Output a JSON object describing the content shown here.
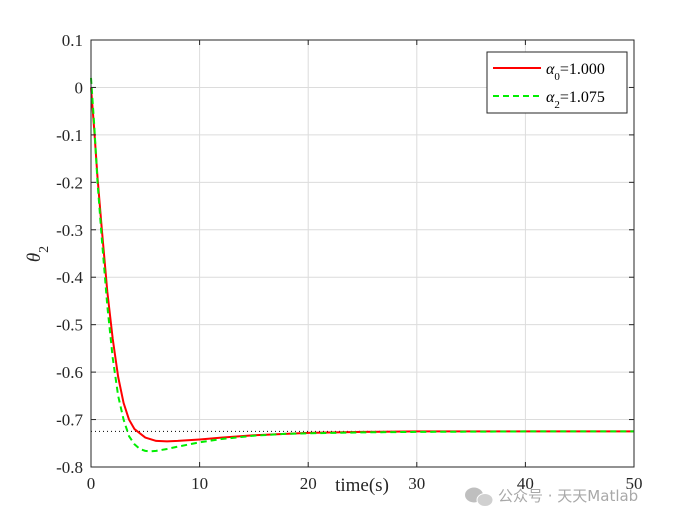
{
  "chart_data": {
    "type": "line",
    "xlabel": "time(s)",
    "ylabel_symbol": "θ",
    "ylabel_sub": "2",
    "xlim": [
      0,
      50
    ],
    "ylim": [
      -0.8,
      0.1
    ],
    "xticks": [
      0,
      10,
      20,
      30,
      40,
      50
    ],
    "xtick_labels": [
      "0",
      "10",
      "20",
      "30",
      "40",
      "50"
    ],
    "yticks": [
      0.1,
      0,
      -0.1,
      -0.2,
      -0.3,
      -0.4,
      -0.5,
      -0.6,
      -0.7,
      -0.8
    ],
    "ytick_labels": [
      "0.1",
      "0",
      "-0.1",
      "-0.2",
      "-0.3",
      "-0.4",
      "-0.5",
      "-0.6",
      "-0.7",
      "-0.8"
    ],
    "grid": true,
    "legend_position": "top-right",
    "reference_line": {
      "y": -0.725,
      "style": "dotted",
      "color": "#000000"
    },
    "series": [
      {
        "name_symbol": "α",
        "name_sub": "0",
        "name_rest": "=1.000",
        "color": "#ff0000",
        "style": "solid",
        "x": [
          0,
          0.3,
          0.6,
          1,
          1.5,
          2,
          2.5,
          3,
          3.5,
          4,
          5,
          6,
          7,
          8,
          10,
          12,
          15,
          20,
          25,
          30,
          40,
          50
        ],
        "y": [
          0.0,
          -0.09,
          -0.19,
          -0.3,
          -0.43,
          -0.53,
          -0.61,
          -0.665,
          -0.7,
          -0.72,
          -0.738,
          -0.745,
          -0.746,
          -0.745,
          -0.742,
          -0.738,
          -0.733,
          -0.728,
          -0.726,
          -0.725,
          -0.725,
          -0.725
        ]
      },
      {
        "name_symbol": "α",
        "name_sub": "2",
        "name_rest": "=1.075",
        "color": "#00ee00",
        "style": "dashed",
        "x": [
          0,
          0.3,
          0.6,
          1,
          1.5,
          2,
          2.5,
          3,
          3.5,
          4,
          4.5,
          5,
          5.5,
          6,
          7,
          8,
          10,
          12,
          15,
          18,
          20,
          25,
          30,
          40,
          50
        ],
        "y": [
          0.02,
          -0.08,
          -0.2,
          -0.32,
          -0.46,
          -0.57,
          -0.65,
          -0.7,
          -0.735,
          -0.752,
          -0.762,
          -0.766,
          -0.767,
          -0.766,
          -0.762,
          -0.757,
          -0.748,
          -0.741,
          -0.734,
          -0.73,
          -0.729,
          -0.727,
          -0.726,
          -0.725,
          -0.725
        ]
      }
    ]
  },
  "watermark": "公众号 · 天天Matlab"
}
